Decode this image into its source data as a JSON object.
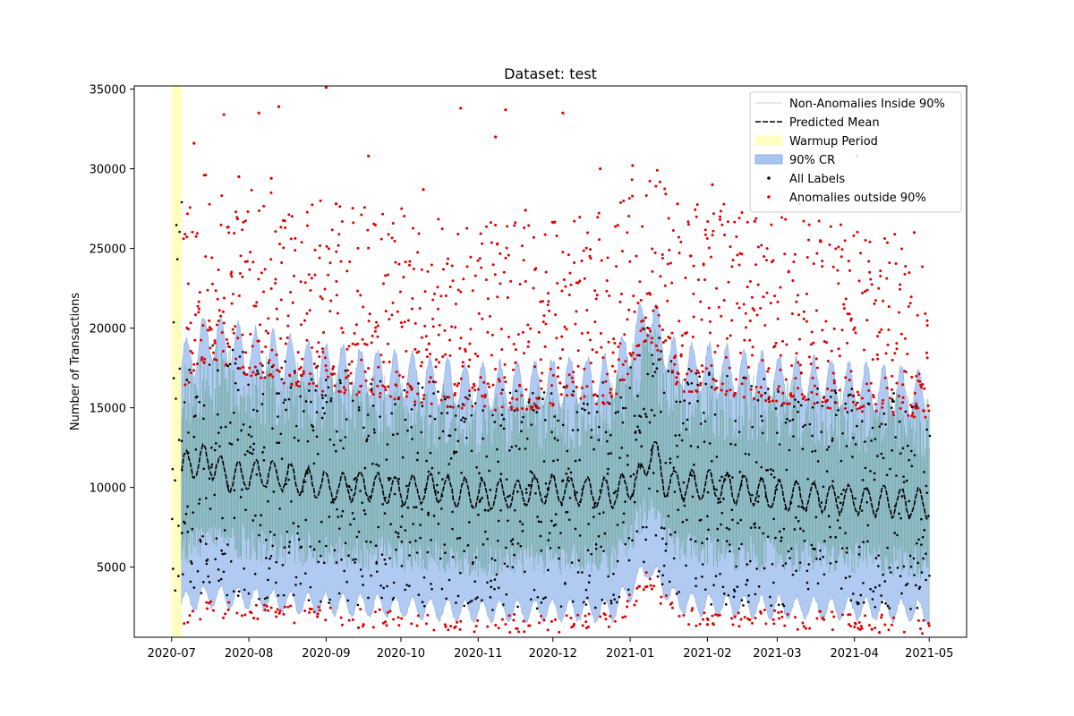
{
  "chart_data": {
    "type": "scatter",
    "title": "Dataset: test",
    "xlabel": "",
    "ylabel": "Number of Transactions",
    "x_range": [
      "2020-06-16",
      "2021-05-16"
    ],
    "ylim": [
      600,
      35200
    ],
    "x_ticks": [
      "2020-07",
      "2020-08",
      "2020-09",
      "2020-10",
      "2020-11",
      "2020-12",
      "2021-01",
      "2021-02",
      "2021-03",
      "2021-04",
      "2021-05"
    ],
    "y_ticks": [
      5000,
      10000,
      15000,
      20000,
      25000,
      30000,
      35000
    ],
    "legend_position": "upper right",
    "legend": [
      {
        "label": "Non-Anomalies Inside 90%",
        "kind": "line",
        "color": "#e8e8f0"
      },
      {
        "label": "Predicted Mean",
        "kind": "dashed-line",
        "color": "#000000"
      },
      {
        "label": "Warmup Period",
        "kind": "patch",
        "color": "#ffffc0"
      },
      {
        "label": "90% CR",
        "kind": "patch",
        "color": "#a8c4f0"
      },
      {
        "label": "All Labels",
        "kind": "marker",
        "color": "#000000"
      },
      {
        "label": "Anomalies outside 90%",
        "kind": "marker",
        "color": "#dd0000"
      }
    ],
    "warmup_period": {
      "start": "2020-07-01",
      "end": "2020-07-05"
    },
    "series": [
      {
        "name": "Predicted Mean",
        "kind": "line",
        "points": [
          [
            "2020-07-05",
            11200
          ],
          [
            "2020-07-15",
            11800
          ],
          [
            "2020-07-25",
            10600
          ],
          [
            "2020-08-05",
            10900
          ],
          [
            "2020-08-15",
            10700
          ],
          [
            "2020-08-25",
            10300
          ],
          [
            "2020-09-05",
            10000
          ],
          [
            "2020-09-15",
            10100
          ],
          [
            "2020-09-25",
            9900
          ],
          [
            "2020-10-05",
            9800
          ],
          [
            "2020-10-15",
            10000
          ],
          [
            "2020-10-25",
            9700
          ],
          [
            "2020-11-05",
            9500
          ],
          [
            "2020-11-15",
            9600
          ],
          [
            "2020-11-25",
            9800
          ],
          [
            "2020-12-05",
            9900
          ],
          [
            "2020-12-15",
            9700
          ],
          [
            "2020-12-25",
            9600
          ],
          [
            "2021-01-05",
            10500
          ],
          [
            "2021-01-10",
            12600
          ],
          [
            "2021-01-15",
            10300
          ],
          [
            "2021-01-25",
            10100
          ],
          [
            "2021-02-05",
            10100
          ],
          [
            "2021-02-15",
            9900
          ],
          [
            "2021-02-25",
            9600
          ],
          [
            "2021-03-05",
            9500
          ],
          [
            "2021-03-15",
            9400
          ],
          [
            "2021-03-25",
            9300
          ],
          [
            "2021-04-05",
            9200
          ],
          [
            "2021-04-15",
            9100
          ],
          [
            "2021-04-25",
            9000
          ],
          [
            "2021-05-01",
            8900
          ]
        ]
      },
      {
        "name": "90% CR",
        "kind": "band",
        "lower": [
          [
            "2020-07-05",
            2700
          ],
          [
            "2020-07-15",
            3200
          ],
          [
            "2020-08-01",
            3000
          ],
          [
            "2020-09-01",
            2700
          ],
          [
            "2020-10-01",
            2500
          ],
          [
            "2020-11-01",
            2200
          ],
          [
            "2020-12-01",
            2300
          ],
          [
            "2020-12-25",
            2300
          ],
          [
            "2021-01-08",
            5000
          ],
          [
            "2021-01-20",
            2800
          ],
          [
            "2021-02-01",
            2600
          ],
          [
            "2021-03-01",
            2500
          ],
          [
            "2021-04-01",
            2400
          ],
          [
            "2021-05-01",
            2200
          ]
        ],
        "upper": [
          [
            "2020-07-05",
            17500
          ],
          [
            "2020-07-15",
            19500
          ],
          [
            "2020-08-01",
            18500
          ],
          [
            "2020-09-01",
            17500
          ],
          [
            "2020-10-01",
            17000
          ],
          [
            "2020-11-01",
            16200
          ],
          [
            "2020-12-01",
            16500
          ],
          [
            "2020-12-25",
            16800
          ],
          [
            "2021-01-08",
            21000
          ],
          [
            "2021-01-20",
            17500
          ],
          [
            "2021-02-01",
            17500
          ],
          [
            "2021-03-01",
            16800
          ],
          [
            "2021-04-01",
            16300
          ],
          [
            "2021-05-01",
            15800
          ]
        ]
      },
      {
        "name": "Anomalies outside 90%",
        "kind": "scatter",
        "points": [
          [
            "2020-07-10",
            31600
          ],
          [
            "2020-07-22",
            33400
          ],
          [
            "2020-08-05",
            33500
          ],
          [
            "2020-08-13",
            33900
          ],
          [
            "2020-09-01",
            35100
          ],
          [
            "2020-10-25",
            33800
          ],
          [
            "2020-11-08",
            32000
          ],
          [
            "2020-11-12",
            33700
          ],
          [
            "2020-12-05",
            33500
          ],
          [
            "2020-12-20",
            30000
          ],
          [
            "2021-01-02",
            30200
          ],
          [
            "2020-07-28",
            29500
          ],
          [
            "2020-08-10",
            29400
          ],
          [
            "2020-09-05",
            27800
          ],
          [
            "2020-09-18",
            30800
          ],
          [
            "2020-10-10",
            28700
          ],
          [
            "2020-11-20",
            27400
          ],
          [
            "2021-01-20",
            27800
          ],
          [
            "2021-02-03",
            29000
          ],
          [
            "2021-02-20",
            26700
          ],
          [
            "2021-03-10",
            27800
          ],
          [
            "2021-03-25",
            31500
          ],
          [
            "2021-04-02",
            30800
          ],
          [
            "2021-04-10",
            28100
          ],
          [
            "2021-04-25",
            26000
          ],
          [
            "2021-04-08",
            1100
          ],
          [
            "2021-04-11",
            900
          ],
          [
            "2021-02-01",
            1400
          ],
          [
            "2021-02-18",
            1700
          ],
          [
            "2020-09-14",
            1200
          ],
          [
            "2020-08-03",
            1800
          ]
        ]
      }
    ]
  }
}
